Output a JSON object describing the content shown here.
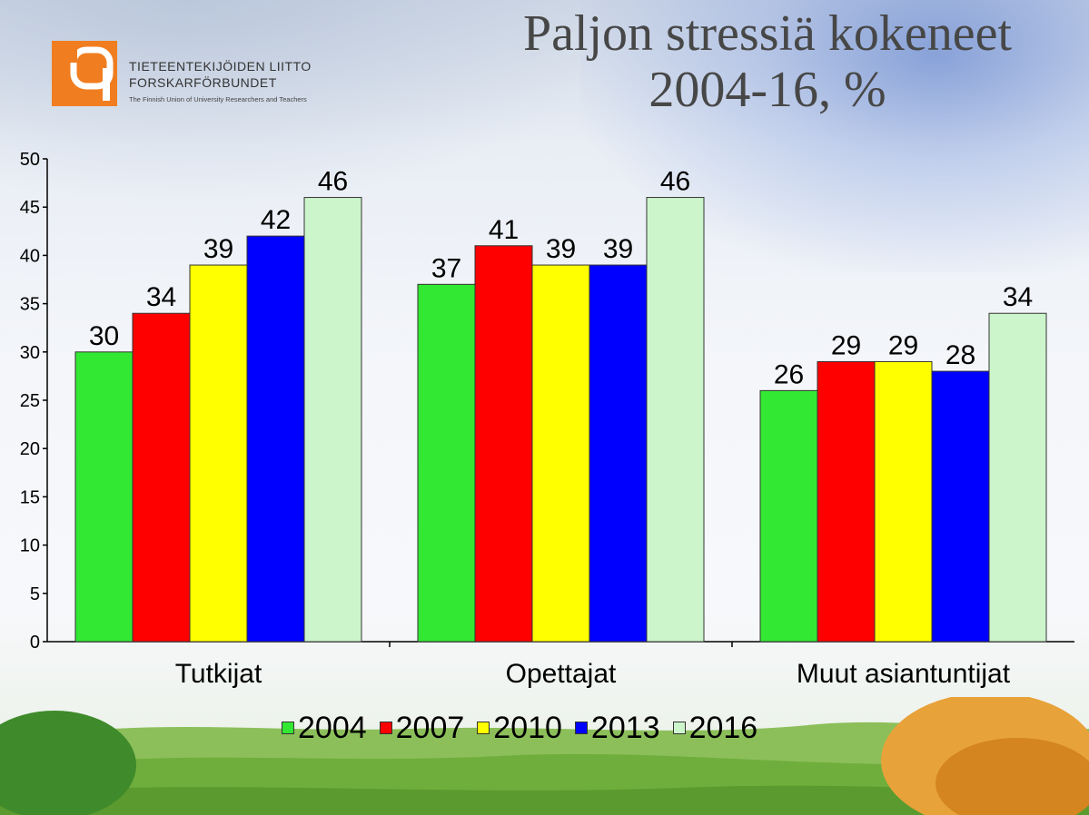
{
  "logo": {
    "line1": "TIETEENTEKIJÖIDEN LIITTO",
    "line2": "FORSKARFÖRBUNDET",
    "line3": "The Finnish Union of University Researchers and Teachers"
  },
  "title_line1": "Paljon stressiä kokeneet",
  "title_line2": "2004-16, %",
  "chart_data": {
    "type": "bar",
    "title": "Paljon stressiä kokeneet 2004-16, %",
    "categories": [
      "Tutkijat",
      "Opettajat",
      "Muut asiantuntijat"
    ],
    "series": [
      {
        "name": "2004",
        "values": [
          30,
          37,
          26
        ],
        "color": "#33e833"
      },
      {
        "name": "2007",
        "values": [
          34,
          41,
          29
        ],
        "color": "#ff0000"
      },
      {
        "name": "2010",
        "values": [
          39,
          39,
          29
        ],
        "color": "#ffff00"
      },
      {
        "name": "2013",
        "values": [
          42,
          39,
          28
        ],
        "color": "#0000ff"
      },
      {
        "name": "2016",
        "values": [
          46,
          46,
          34
        ],
        "color": "#ccf5cc"
      }
    ],
    "ylim": [
      0,
      50
    ],
    "yticks": [
      0,
      5,
      10,
      15,
      20,
      25,
      30,
      35,
      40,
      45,
      50
    ],
    "grid": false,
    "legend_position": "bottom"
  }
}
